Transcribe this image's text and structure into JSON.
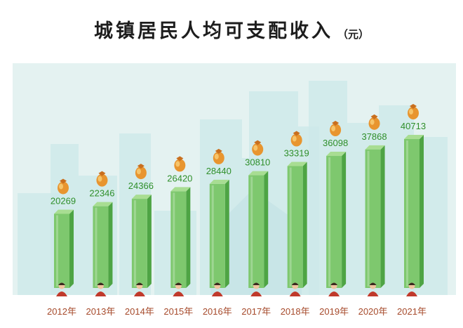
{
  "header": {
    "title": "城镇居民人均可支配收入",
    "unit": "（元）"
  },
  "colors": {
    "bar_front": "#7ec86e",
    "bar_side": "#4ea444",
    "bar_top": "#a8dd92",
    "value_text": "#2f8f2a",
    "year_text": "#a64a2b",
    "background": "#e4f2f1",
    "skyline": "#cde8ea"
  },
  "icons": {
    "above_bar": "money-bag-icon",
    "bar_base": "person-avatar-icon"
  },
  "chart_data": {
    "type": "bar",
    "title": "城镇居民人均可支配收入",
    "unit": "（元）",
    "categories": [
      "2012年",
      "2013年",
      "2014年",
      "2015年",
      "2016年",
      "2017年",
      "2018年",
      "2019年",
      "2020年",
      "2021年"
    ],
    "values": [
      20269,
      22346,
      24366,
      26420,
      28440,
      30810,
      33319,
      36098,
      37868,
      40713
    ],
    "value_labels": [
      "20269",
      "22346",
      "24366",
      "26420",
      "28440",
      "30810",
      "33319",
      "36098",
      "37868",
      "40713"
    ],
    "grid": false,
    "legend": "none"
  }
}
